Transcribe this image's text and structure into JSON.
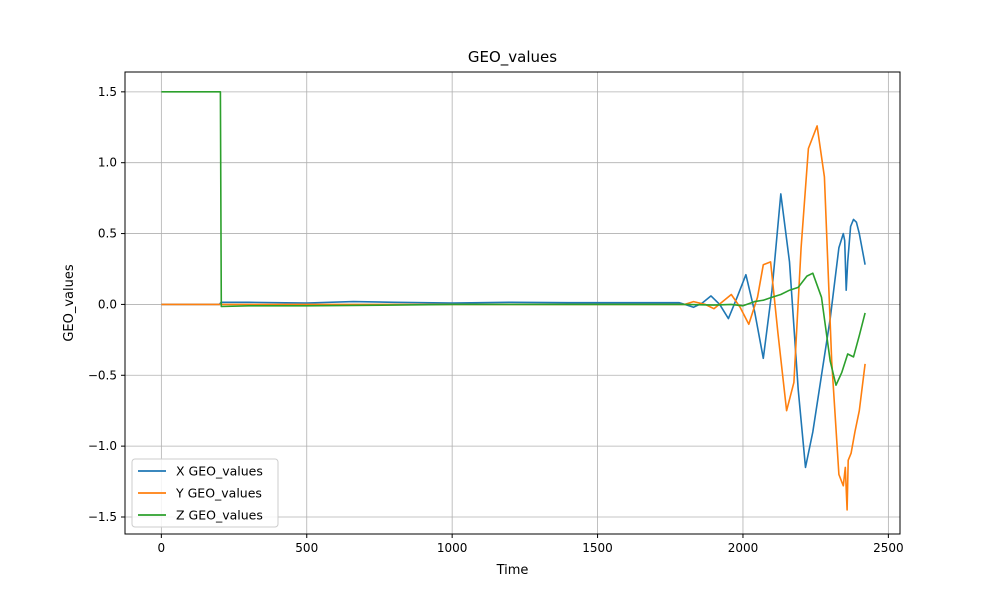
{
  "chart_data": {
    "type": "line",
    "title": "GEO_values",
    "xlabel": "Time",
    "ylabel": "GEO_values",
    "xlim": [
      -125,
      2540
    ],
    "ylim": [
      -1.62,
      1.64
    ],
    "xticks": [
      0,
      500,
      1000,
      1500,
      2000,
      2500
    ],
    "xtick_labels": [
      "0",
      "500",
      "1000",
      "1500",
      "2000",
      "2500"
    ],
    "yticks": [
      -1.5,
      -1.0,
      -0.5,
      0.0,
      0.5,
      1.0,
      1.5
    ],
    "ytick_labels": [
      "−1.5",
      "−1.0",
      "−0.5",
      "0.0",
      "0.5",
      "1.0",
      "1.5"
    ],
    "grid": true,
    "legend_position": "lower-left",
    "series": [
      {
        "name": "X GEO_values",
        "color": "#1f77b4",
        "x": [
          0,
          200,
          205,
          300,
          500,
          660,
          800,
          1000,
          1200,
          1400,
          1600,
          1780,
          1800,
          1830,
          1860,
          1890,
          1920,
          1950,
          1980,
          2010,
          2040,
          2070,
          2100,
          2130,
          2160,
          2190,
          2215,
          2240,
          2270,
          2300,
          2330,
          2345,
          2350,
          2355,
          2360,
          2370,
          2380,
          2390,
          2400,
          2420
        ],
        "y": [
          0.0,
          0.0,
          0.015,
          0.015,
          0.01,
          0.02,
          0.015,
          0.01,
          0.015,
          0.012,
          0.012,
          0.012,
          0.0,
          -0.02,
          0.01,
          0.06,
          0.0,
          -0.1,
          0.05,
          0.21,
          -0.05,
          -0.38,
          0.1,
          0.78,
          0.3,
          -0.6,
          -1.15,
          -0.9,
          -0.5,
          -0.1,
          0.4,
          0.5,
          0.45,
          0.1,
          0.3,
          0.55,
          0.6,
          0.58,
          0.5,
          0.28
        ]
      },
      {
        "name": "Y GEO_values",
        "color": "#ff7f0e",
        "x": [
          0,
          200,
          300,
          500,
          800,
          1000,
          1200,
          1500,
          1780,
          1800,
          1830,
          1870,
          1900,
          1930,
          1960,
          1990,
          2020,
          2050,
          2070,
          2095,
          2120,
          2150,
          2175,
          2200,
          2225,
          2255,
          2280,
          2305,
          2330,
          2345,
          2352,
          2358,
          2362,
          2372,
          2385,
          2400,
          2420
        ],
        "y": [
          0.0,
          0.0,
          0.0,
          0.0,
          0.0,
          0.0,
          0.0,
          0.0,
          0.0,
          0.0,
          0.02,
          0.0,
          -0.03,
          0.02,
          0.07,
          -0.02,
          -0.14,
          0.05,
          0.28,
          0.3,
          -0.2,
          -0.75,
          -0.55,
          0.4,
          1.1,
          1.26,
          0.9,
          -0.4,
          -1.2,
          -1.28,
          -1.15,
          -1.45,
          -1.1,
          -1.05,
          -0.9,
          -0.75,
          -0.42
        ]
      },
      {
        "name": "Z GEO_values",
        "color": "#2ca02c",
        "x": [
          0,
          200,
          203,
          206,
          300,
          500,
          800,
          1000,
          1200,
          1500,
          1780,
          1800,
          1900,
          1960,
          2000,
          2040,
          2070,
          2100,
          2130,
          2160,
          2190,
          2220,
          2240,
          2270,
          2300,
          2320,
          2340,
          2360,
          2380,
          2400,
          2420
        ],
        "y": [
          1.5,
          1.5,
          1.5,
          -0.015,
          -0.01,
          -0.01,
          -0.005,
          0.0,
          0.0,
          0.0,
          0.0,
          0.0,
          -0.005,
          0.0,
          -0.01,
          0.02,
          0.03,
          0.05,
          0.07,
          0.1,
          0.12,
          0.2,
          0.22,
          0.05,
          -0.4,
          -0.57,
          -0.48,
          -0.35,
          -0.37,
          -0.22,
          -0.06
        ]
      }
    ]
  }
}
